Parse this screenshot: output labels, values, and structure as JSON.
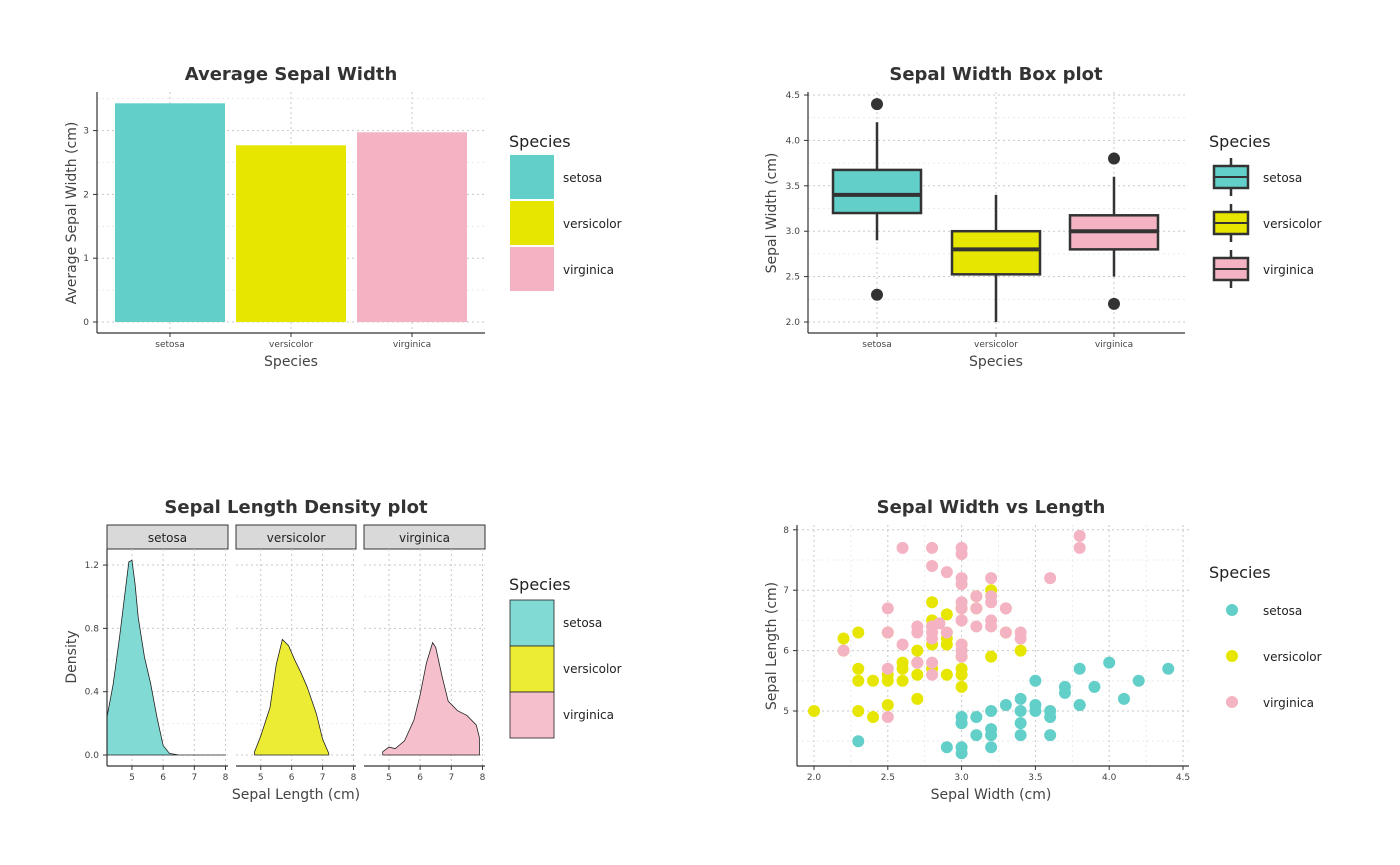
{
  "colors": {
    "setosa": "#63cfc9",
    "versicolor": "#e6e600",
    "virginica": "#f4b3c2",
    "dark": "#333333"
  },
  "panels": {
    "bar": {
      "chart_data": {
        "type": "bar",
        "title": "Average Sepal Width",
        "xlabel": "Species",
        "ylabel": "Average Sepal Width (cm)",
        "categories": [
          "setosa",
          "versicolor",
          "virginica"
        ],
        "values": [
          3.428,
          2.77,
          2.974
        ],
        "ylim": [
          0,
          3.6
        ],
        "yticks": [
          0,
          1,
          2,
          3
        ],
        "legend": {
          "title": "Species",
          "entries": [
            "setosa",
            "versicolor",
            "virginica"
          ],
          "placement": "right"
        },
        "grid": true
      }
    },
    "box": {
      "chart_data": {
        "type": "box",
        "title": "Sepal Width Box plot",
        "xlabel": "Species",
        "ylabel": "Sepal Width (cm)",
        "categories": [
          "setosa",
          "versicolor",
          "virginica"
        ],
        "boxes": [
          {
            "q1": 3.2,
            "median": 3.4,
            "q3": 3.675,
            "lower": 2.9,
            "upper": 4.2,
            "outliers": [
              4.4,
              2.3
            ]
          },
          {
            "q1": 2.525,
            "median": 2.8,
            "q3": 3.0,
            "lower": 2.0,
            "upper": 3.4,
            "outliers": []
          },
          {
            "q1": 2.8,
            "median": 3.0,
            "q3": 3.175,
            "lower": 2.5,
            "upper": 3.6,
            "outliers": [
              3.8,
              2.2
            ]
          }
        ],
        "ylim": [
          1.95,
          4.55
        ],
        "yticks": [
          "2.0",
          "2.5",
          "3.0",
          "3.5",
          "4.0",
          "4.5"
        ],
        "legend": {
          "title": "Species",
          "entries": [
            "setosa",
            "versicolor",
            "virginica"
          ],
          "placement": "right"
        },
        "grid": true
      }
    },
    "density": {
      "chart_data": {
        "type": "area",
        "title": "Sepal Length Density plot",
        "xlabel": "Sepal Length (cm)",
        "ylabel": "Density",
        "facets": [
          "setosa",
          "versicolor",
          "virginica"
        ],
        "xlim": [
          4.2,
          8.1
        ],
        "xticks": [
          5,
          6,
          7,
          8
        ],
        "ylim": [
          -0.02,
          1.32
        ],
        "yticks": [
          "0.0",
          "0.4",
          "0.8",
          "1.2"
        ],
        "series": [
          {
            "name": "setosa",
            "x": [
              4.2,
              4.4,
              4.6,
              4.8,
              4.9,
              5.0,
              5.1,
              5.2,
              5.4,
              5.6,
              5.8,
              6.0,
              6.2,
              6.5,
              7.0,
              7.5,
              8.0
            ],
            "values": [
              0.24,
              0.45,
              0.74,
              1.06,
              1.22,
              1.23,
              1.08,
              0.87,
              0.62,
              0.45,
              0.24,
              0.06,
              0.01,
              0,
              0,
              0,
              0
            ]
          },
          {
            "name": "versicolor",
            "x": [
              4.8,
              5.0,
              5.3,
              5.5,
              5.7,
              5.9,
              6.1,
              6.3,
              6.5,
              6.8,
              7.0,
              7.2
            ],
            "values": [
              0.02,
              0.12,
              0.3,
              0.57,
              0.73,
              0.69,
              0.6,
              0.52,
              0.43,
              0.26,
              0.1,
              0.01
            ]
          },
          {
            "name": "virginica",
            "x": [
              4.8,
              5.0,
              5.2,
              5.5,
              5.8,
              6.0,
              6.2,
              6.4,
              6.5,
              6.7,
              6.9,
              7.2,
              7.5,
              7.8,
              7.9
            ],
            "values": [
              0.02,
              0.05,
              0.04,
              0.09,
              0.22,
              0.38,
              0.58,
              0.71,
              0.68,
              0.5,
              0.34,
              0.28,
              0.25,
              0.19,
              0.11
            ]
          }
        ],
        "legend": {
          "title": "Species",
          "entries": [
            "setosa",
            "versicolor",
            "virginica"
          ],
          "placement": "right"
        },
        "grid": true
      }
    },
    "scatter": {
      "chart_data": {
        "type": "scatter",
        "title": "Sepal Width vs Length",
        "xlabel": "Sepal Width (cm)",
        "ylabel": "Sepal Length (cm)",
        "xlim": [
          1.95,
          4.5
        ],
        "xticks": [
          "2.0",
          "2.5",
          "3.0",
          "3.5",
          "4.0",
          "4.5"
        ],
        "ylim": [
          4.1,
          8.05
        ],
        "yticks": [
          5,
          6,
          7,
          8
        ],
        "series": [
          {
            "name": "setosa",
            "points": [
              [
                3.5,
                5.1
              ],
              [
                3.0,
                4.9
              ],
              [
                3.2,
                4.7
              ],
              [
                3.1,
                4.6
              ],
              [
                3.6,
                5.0
              ],
              [
                3.9,
                5.4
              ],
              [
                3.4,
                4.6
              ],
              [
                3.4,
                5.0
              ],
              [
                2.9,
                4.4
              ],
              [
                3.7,
                5.4
              ],
              [
                3.0,
                4.8
              ],
              [
                3.0,
                4.3
              ],
              [
                4.0,
                5.8
              ],
              [
                4.4,
                5.7
              ],
              [
                3.8,
                5.1
              ],
              [
                3.3,
                5.1
              ],
              [
                3.4,
                4.8
              ],
              [
                4.1,
                5.2
              ],
              [
                4.2,
                5.5
              ],
              [
                3.2,
                5.0
              ],
              [
                3.5,
                5.5
              ],
              [
                3.6,
                4.9
              ],
              [
                3.0,
                4.4
              ],
              [
                3.8,
                5.1
              ],
              [
                2.3,
                4.5
              ],
              [
                3.2,
                4.4
              ],
              [
                3.5,
                5.0
              ],
              [
                3.8,
                5.7
              ],
              [
                3.2,
                4.6
              ],
              [
                3.7,
                5.3
              ],
              [
                3.1,
                4.9
              ],
              [
                3.4,
                5.2
              ],
              [
                3.6,
                4.6
              ],
              [
                3.0,
                4.8
              ]
            ]
          },
          {
            "name": "versicolor",
            "points": [
              [
                3.2,
                7.0
              ],
              [
                3.1,
                6.9
              ],
              [
                2.3,
                5.5
              ],
              [
                2.8,
                6.5
              ],
              [
                3.3,
                6.3
              ],
              [
                2.4,
                4.9
              ],
              [
                2.9,
                6.6
              ],
              [
                2.7,
                5.2
              ],
              [
                2.0,
                5.0
              ],
              [
                3.0,
                5.9
              ],
              [
                2.2,
                6.0
              ],
              [
                2.9,
                6.1
              ],
              [
                2.9,
                5.6
              ],
              [
                3.1,
                6.7
              ],
              [
                2.7,
                5.8
              ],
              [
                2.2,
                6.2
              ],
              [
                2.5,
                5.6
              ],
              [
                3.2,
                5.9
              ],
              [
                2.8,
                6.1
              ],
              [
                2.5,
                6.3
              ],
              [
                2.8,
                6.8
              ],
              [
                3.0,
                6.7
              ],
              [
                2.6,
                5.7
              ],
              [
                2.4,
                5.5
              ],
              [
                2.7,
                5.8
              ],
              [
                2.7,
                6.0
              ],
              [
                3.0,
                5.4
              ],
              [
                3.4,
                6.0
              ],
              [
                2.3,
                6.3
              ],
              [
                3.0,
                5.6
              ],
              [
                2.5,
                5.5
              ],
              [
                2.6,
                5.5
              ],
              [
                3.0,
                6.1
              ],
              [
                2.6,
                5.8
              ],
              [
                2.3,
                5.0
              ],
              [
                2.7,
                5.6
              ],
              [
                3.0,
                5.7
              ],
              [
                2.9,
                6.2
              ],
              [
                2.5,
                5.1
              ],
              [
                2.8,
                5.7
              ],
              [
                2.3,
                5.7
              ],
              [
                2.9,
                6.3
              ]
            ]
          },
          {
            "name": "virginica",
            "points": [
              [
                3.3,
                6.3
              ],
              [
                2.7,
                5.8
              ],
              [
                3.0,
                7.1
              ],
              [
                2.9,
                6.3
              ],
              [
                3.0,
                6.5
              ],
              [
                3.0,
                7.6
              ],
              [
                2.5,
                4.9
              ],
              [
                2.9,
                7.3
              ],
              [
                2.5,
                6.7
              ],
              [
                3.6,
                7.2
              ],
              [
                3.2,
                6.5
              ],
              [
                2.7,
                6.4
              ],
              [
                3.0,
                6.8
              ],
              [
                2.5,
                5.7
              ],
              [
                2.8,
                5.8
              ],
              [
                3.2,
                6.4
              ],
              [
                3.0,
                6.5
              ],
              [
                3.8,
                7.7
              ],
              [
                2.6,
                7.7
              ],
              [
                2.2,
                6.0
              ],
              [
                3.2,
                6.9
              ],
              [
                2.8,
                5.6
              ],
              [
                2.8,
                7.7
              ],
              [
                2.7,
                6.3
              ],
              [
                3.3,
                6.7
              ],
              [
                3.2,
                7.2
              ],
              [
                2.8,
                6.2
              ],
              [
                3.0,
                6.1
              ],
              [
                2.8,
                6.4
              ],
              [
                3.0,
                7.2
              ],
              [
                2.8,
                7.4
              ],
              [
                3.8,
                7.9
              ],
              [
                2.8,
                6.4
              ],
              [
                2.8,
                6.3
              ],
              [
                2.6,
                6.1
              ],
              [
                3.0,
                7.7
              ],
              [
                3.4,
                6.3
              ],
              [
                3.1,
                6.4
              ],
              [
                3.0,
                6.0
              ],
              [
                3.1,
                6.9
              ],
              [
                3.1,
                6.7
              ],
              [
                2.7,
                5.8
              ],
              [
                3.2,
                6.8
              ],
              [
                3.3,
                6.7
              ],
              [
                3.0,
                6.7
              ],
              [
                2.5,
                6.3
              ],
              [
                3.0,
                6.5
              ],
              [
                3.4,
                6.2
              ],
              [
                3.0,
                5.9
              ],
              [
                2.85,
                6.45
              ]
            ]
          }
        ],
        "legend": {
          "title": "Species",
          "entries": [
            "setosa",
            "versicolor",
            "virginica"
          ],
          "placement": "right"
        },
        "grid": true
      }
    }
  }
}
